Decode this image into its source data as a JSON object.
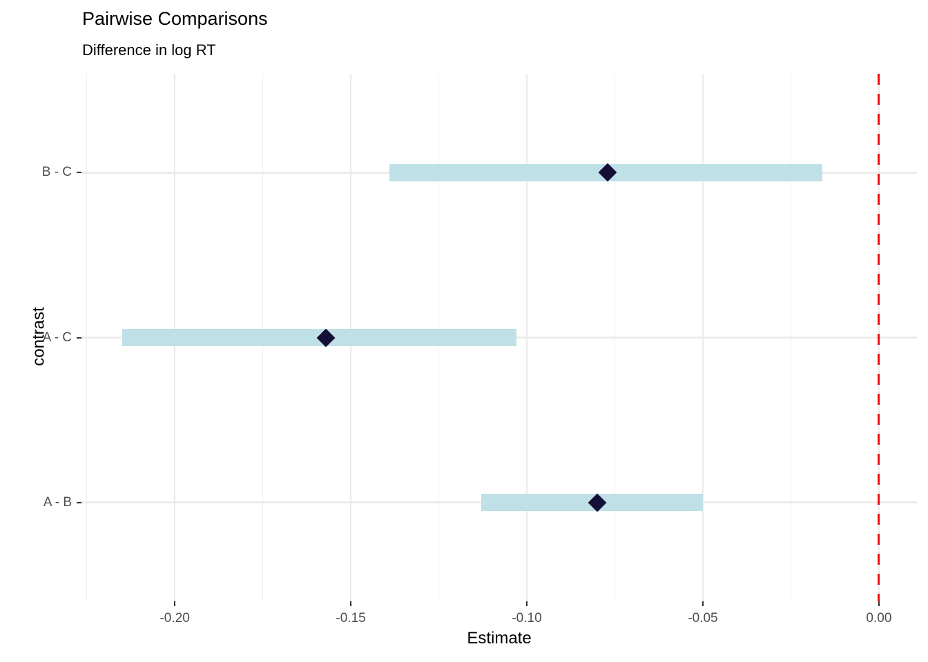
{
  "chart_data": {
    "type": "scatter",
    "variant": "forest_plot_pointrange",
    "title": "Pairwise Comparisons",
    "subtitle": "Difference in log RT",
    "xlabel": "Estimate",
    "ylabel": "contrast",
    "categories": [
      "B - C",
      "A - C",
      "A - B"
    ],
    "points": [
      {
        "contrast": "B - C",
        "estimate": -0.077,
        "ci_low": -0.139,
        "ci_high": -0.016
      },
      {
        "contrast": "A - C",
        "estimate": -0.157,
        "ci_low": -0.215,
        "ci_high": -0.103
      },
      {
        "contrast": "A - B",
        "estimate": -0.08,
        "ci_low": -0.113,
        "ci_high": -0.05
      }
    ],
    "x_ticks": [
      -0.2,
      -0.15,
      -0.1,
      -0.05,
      0.0
    ],
    "x_tick_labels": [
      "-0.20",
      "-0.15",
      "-0.10",
      "-0.05",
      "0.00"
    ],
    "xlim": [
      -0.2265,
      0.0108
    ],
    "reference_line": {
      "x": 0.0,
      "style": "dashed",
      "color": "#f20c0c"
    },
    "grid": true,
    "legend": false,
    "colors": {
      "ci_bar": "#bfe0e6",
      "estimate_point": "#150e37",
      "gridline_major": "#ebebeb",
      "gridline_minor": "#efefef",
      "tick_label": "#4d4d4d",
      "axis_title": "#000000",
      "background": "#ffffff"
    }
  }
}
